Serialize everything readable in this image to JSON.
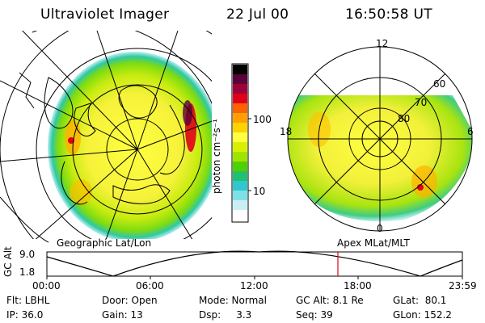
{
  "header": {
    "instrument": "Ultraviolet Imager",
    "date": "22 Jul 00",
    "time": "16:50:58 UT"
  },
  "colorbar": {
    "unit_label": "photon cm⁻²s⁻¹",
    "ticks": [
      "100",
      "10"
    ],
    "colors": [
      "#000000",
      "#5a003a",
      "#9e0038",
      "#e00018",
      "#ff6000",
      "#ffa000",
      "#ffd200",
      "#ffff40",
      "#d8f000",
      "#9ee600",
      "#4fd000",
      "#20c070",
      "#30c8d0",
      "#80e0e8",
      "#c8f0f4",
      "#ffffff"
    ]
  },
  "left_panel": {
    "label": "Geographic Lat/Lon"
  },
  "right_panel": {
    "label": "Apex MLat/MLT",
    "lat_labels": [
      "60",
      "70",
      "80"
    ],
    "mlt_labels": [
      "12",
      "18",
      "6",
      "0"
    ]
  },
  "altitude_plot": {
    "axis_label": "GC Alt",
    "ytick_top": "9.0",
    "ytick_bottom": "1.8",
    "xticks": [
      "00:00",
      "06:00",
      "12:00",
      "18:00",
      "23:59"
    ]
  },
  "footer": {
    "filter": "Flt: LBHL",
    "door": "Door: Open",
    "mode": "Mode: Normal",
    "gc_alt": "GC Alt: 8.1 Re",
    "glat": "GLat:  80.1",
    "ip": "IP: 36.0",
    "gain": "Gain: 13",
    "dsp": "Dsp:     3.3",
    "seq": "Seq: 39",
    "glon": "GLon: 152.2"
  }
}
